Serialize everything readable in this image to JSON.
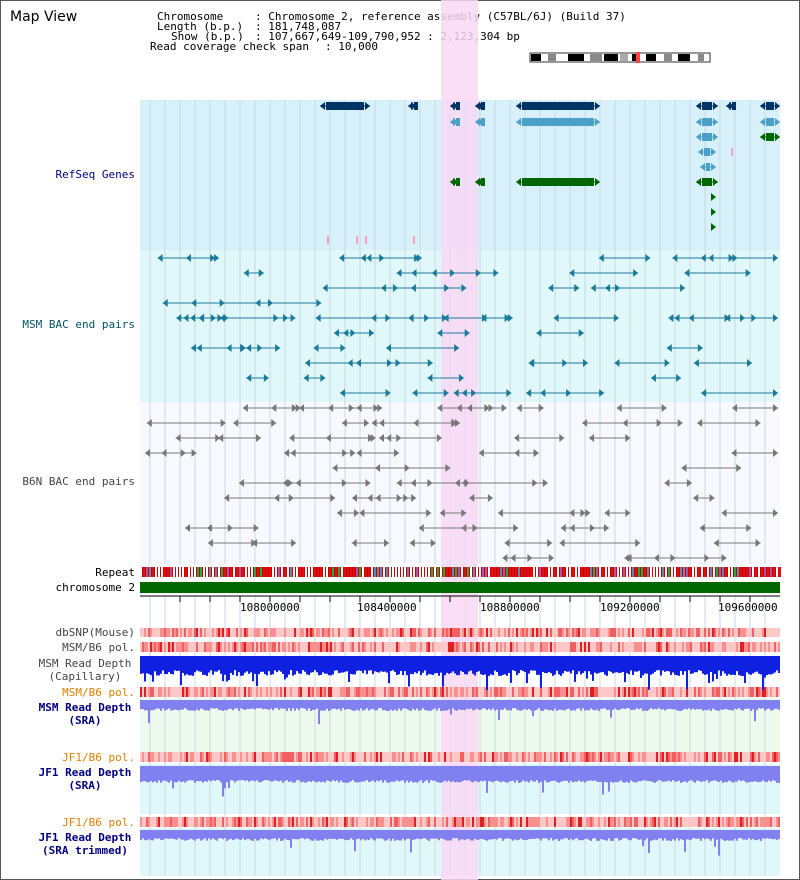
{
  "title": "Map View",
  "header": {
    "chromosome_key": "Chromosome",
    "chromosome_val": ": Chromosome 2, reference assembly (C57BL/6J) (Build 37)",
    "length_key": "Length (b.p.)",
    "length_val": ": 181,748,087",
    "show_key": "Show (b.p.)",
    "show_val": ": 107,667,649-109,790,952 : 2,123,304 bp",
    "span_key": "Read coverage check span",
    "span_val": ": 10,000"
  },
  "tracks": {
    "refseq": "RefSeq Genes",
    "msm_bac": "MSM BAC end pairs",
    "b6n_bac": "B6N BAC end pairs",
    "repeat": "Repeat",
    "chromosome": "chromosome 2",
    "dbsnp": "dbSNP(Mouse)",
    "msm_pol": "MSM/B6 pol.",
    "msm_depth_cap_1": "MSM Read Depth",
    "msm_depth_cap_2": "(Capillary)",
    "msm_pol2": "MSM/B6 pol.",
    "msm_depth_sra_1": "MSM Read Depth",
    "msm_depth_sra_2": "(SRA)",
    "jf1_pol": "JF1/B6 pol.",
    "jf1_depth_1": "JF1 Read Depth",
    "jf1_depth_2": "(SRA)",
    "jf1_pol2": "JF1/B6 pol.",
    "jf1_trim_1": "JF1 Read Depth",
    "jf1_trim_2": "(SRA trimmed)"
  },
  "axis": {
    "ticks": [
      "108000000",
      "108400000",
      "108800000",
      "109200000",
      "109600000"
    ]
  },
  "colors": {
    "refseq_bg": "#d8f0fa",
    "msm_bg": "#e0f8fa",
    "b6n_bg": "#f8f8ff",
    "highlight": "#f8d8f4",
    "label_blue": "#000080",
    "label_teal": "#005566",
    "label_gray": "#444444",
    "label_orange": "#e08000",
    "gene_dark": "#003366",
    "gene_light": "#4aa0c8",
    "gene_green": "#006600",
    "chrom_green": "#006600",
    "depth_blue": "#1020e0",
    "depth_light": "#8080f0"
  }
}
